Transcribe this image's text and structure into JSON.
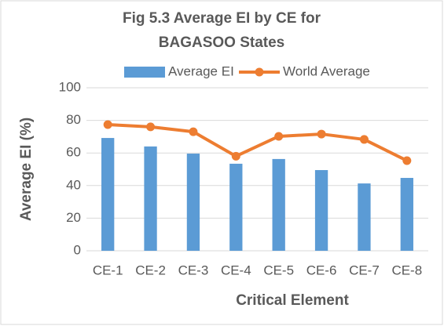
{
  "chart_data": {
    "type": "bar_line",
    "title": "Fig 5.3 Average EI by CE for BAGASOO States",
    "x_label": "Critical Element",
    "y_label": "Average EI (%)",
    "categories": [
      "CE-1",
      "CE-2",
      "CE-3",
      "CE-4",
      "CE-5",
      "CE-6",
      "CE-7",
      "CE-8"
    ],
    "series": [
      {
        "name": "Average EI",
        "type": "bar",
        "color": "#5b9bd5",
        "values": [
          69.2,
          64,
          59.6,
          53.4,
          56.3,
          49.5,
          41.3,
          44.7
        ]
      },
      {
        "name": "World Average",
        "type": "line",
        "color": "#ed7d31",
        "values": [
          77.4,
          76,
          73,
          58,
          70.2,
          71.6,
          68.3,
          55.3
        ]
      }
    ],
    "ylim": [
      0,
      100
    ],
    "yticks": [
      0,
      20,
      40,
      60,
      80,
      100
    ],
    "grid": true,
    "legend": "top"
  }
}
